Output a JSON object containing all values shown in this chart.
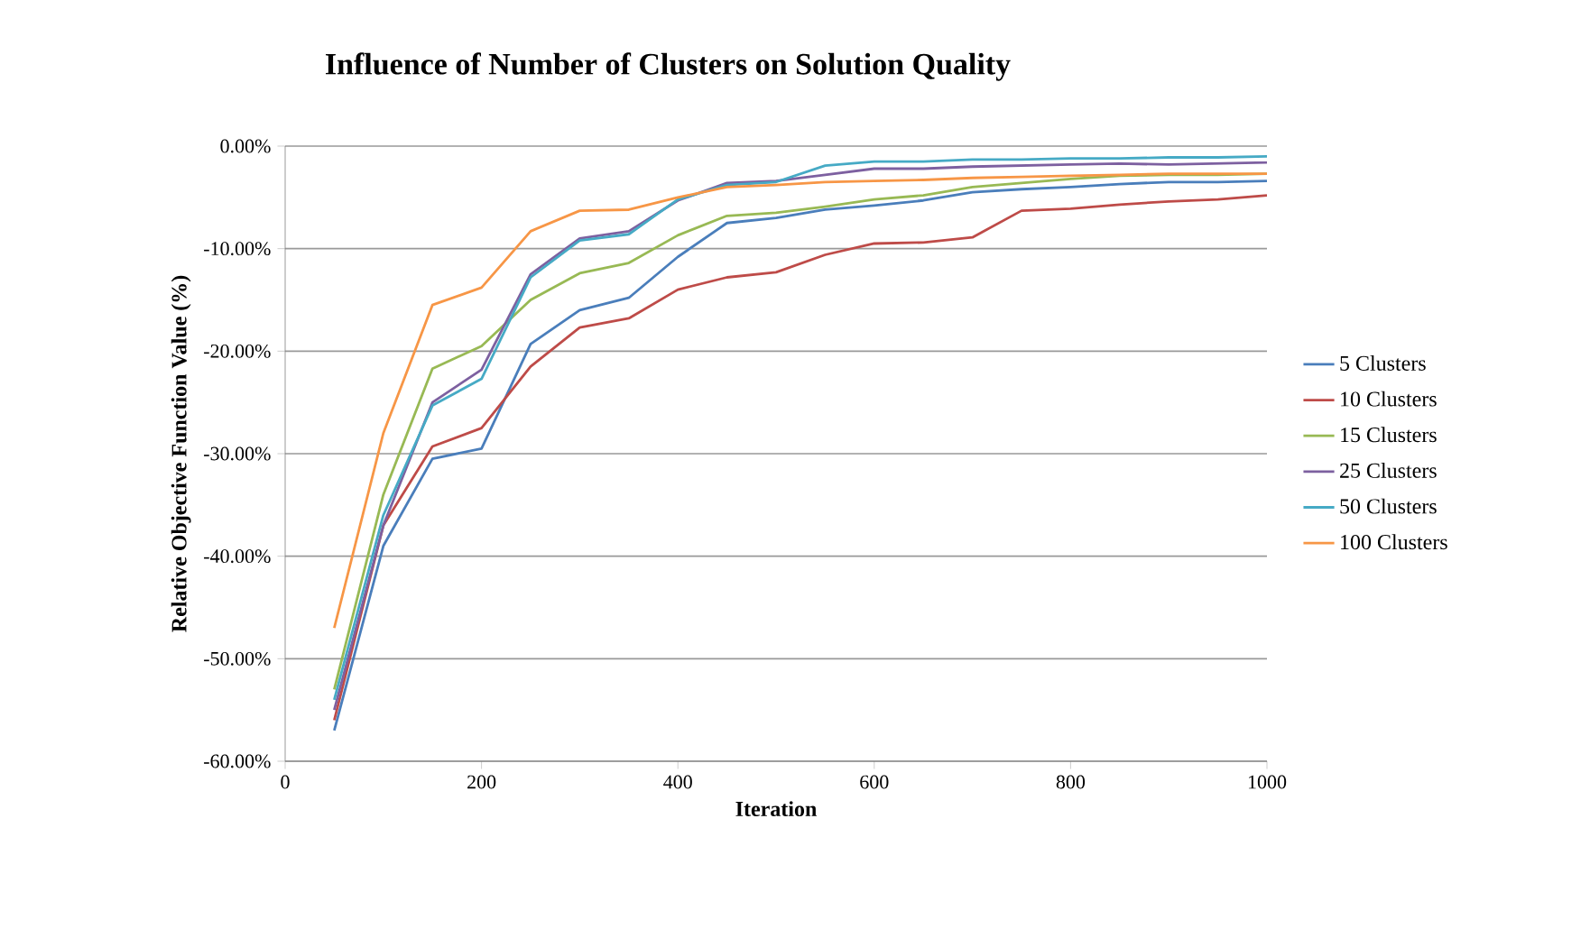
{
  "chart_data": {
    "type": "line",
    "title": "Influence of Number of Clusters on Solution Quality",
    "xlabel": "Iteration",
    "ylabel": "Relative Objective Function Value (%)",
    "x": [
      50,
      100,
      150,
      200,
      250,
      300,
      350,
      400,
      450,
      500,
      550,
      600,
      650,
      700,
      750,
      800,
      850,
      900,
      950,
      1000
    ],
    "series": [
      {
        "name": "5 Clusters",
        "color": "#4a7ebb",
        "values": [
          -57,
          -39,
          -30.5,
          -29.5,
          -19.3,
          -16,
          -14.8,
          -10.8,
          -7.5,
          -7,
          -6.2,
          -5.8,
          -5.3,
          -4.5,
          -4.2,
          -4,
          -3.7,
          -3.5,
          -3.5,
          -3.4
        ]
      },
      {
        "name": "10 Clusters",
        "color": "#be4b48",
        "values": [
          -56,
          -37,
          -29.3,
          -27.5,
          -21.5,
          -17.7,
          -16.8,
          -14,
          -12.8,
          -12.3,
          -10.6,
          -9.5,
          -9.4,
          -8.9,
          -6.3,
          -6.1,
          -5.7,
          -5.4,
          -5.2,
          -4.8
        ]
      },
      {
        "name": "15 Clusters",
        "color": "#98b954",
        "values": [
          -53,
          -34,
          -21.7,
          -19.5,
          -15,
          -12.4,
          -11.4,
          -8.7,
          -6.8,
          -6.5,
          -5.9,
          -5.2,
          -4.8,
          -4,
          -3.6,
          -3.2,
          -2.9,
          -2.8,
          -2.8,
          -2.7
        ]
      },
      {
        "name": "25 Clusters",
        "color": "#7d60a0",
        "values": [
          -55,
          -37,
          -25,
          -21.8,
          -12.5,
          -9,
          -8.3,
          -5.3,
          -3.6,
          -3.4,
          -2.8,
          -2.2,
          -2.2,
          -2,
          -1.9,
          -1.8,
          -1.7,
          -1.8,
          -1.7,
          -1.6
        ]
      },
      {
        "name": "50 Clusters",
        "color": "#46aac5",
        "values": [
          -54,
          -36,
          -25.3,
          -22.7,
          -12.8,
          -9.2,
          -8.6,
          -5.2,
          -3.8,
          -3.5,
          -1.9,
          -1.5,
          -1.5,
          -1.3,
          -1.3,
          -1.2,
          -1.2,
          -1.1,
          -1.1,
          -1
        ]
      },
      {
        "name": "100 Clusters",
        "color": "#f79646",
        "values": [
          -47,
          -28,
          -15.5,
          -13.8,
          -8.3,
          -6.3,
          -6.2,
          -5,
          -4,
          -3.8,
          -3.5,
          -3.4,
          -3.3,
          -3.1,
          -3,
          -2.9,
          -2.8,
          -2.7,
          -2.7,
          -2.7
        ]
      }
    ],
    "xlim": [
      0,
      1000
    ],
    "xticks": [
      0,
      200,
      400,
      600,
      800,
      1000
    ],
    "ylim": [
      -60,
      0
    ],
    "yticks": [
      {
        "value": -60,
        "label": "-60.00%"
      },
      {
        "value": -50,
        "label": "-50.00%"
      },
      {
        "value": -40,
        "label": "-40.00%"
      },
      {
        "value": -30,
        "label": "-30.00%"
      },
      {
        "value": -20,
        "label": "-20.00%"
      },
      {
        "value": -10,
        "label": "-10.00%"
      },
      {
        "value": 0,
        "label": "0.00%"
      }
    ],
    "grid": "y",
    "legend": "right",
    "marker": "none",
    "line_style": "solid"
  }
}
